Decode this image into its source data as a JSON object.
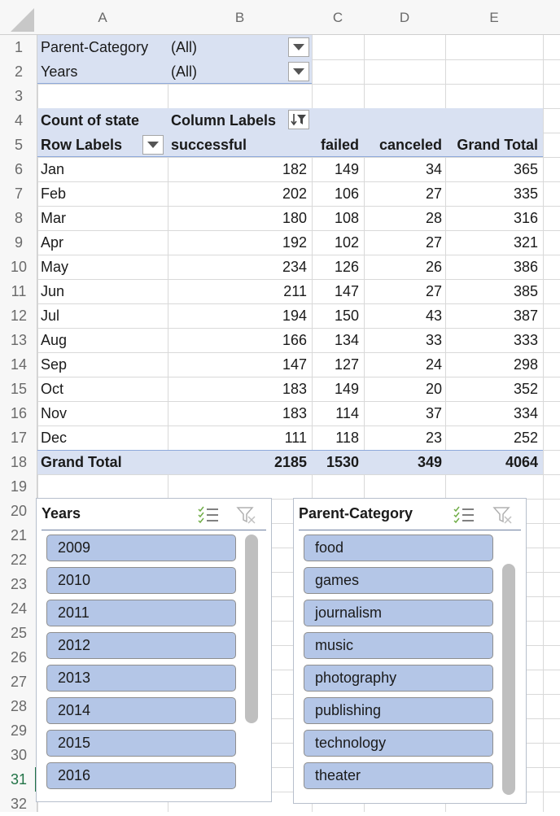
{
  "columns": [
    "A",
    "B",
    "C",
    "D",
    "E"
  ],
  "rows": [
    "1",
    "2",
    "3",
    "4",
    "5",
    "6",
    "7",
    "8",
    "9",
    "10",
    "11",
    "12",
    "13",
    "14",
    "15",
    "16",
    "17",
    "18",
    "19",
    "20",
    "21",
    "22",
    "23",
    "24",
    "25",
    "26",
    "27",
    "28",
    "29",
    "30",
    "31",
    "32"
  ],
  "active_row": "31",
  "filters": [
    {
      "label": "Parent-Category",
      "value": "(All)"
    },
    {
      "label": "Years",
      "value": "(All)"
    }
  ],
  "pivot": {
    "value_label": "Count of state",
    "column_labels": "Column Labels",
    "row_labels": "Row Labels",
    "headers": [
      "successful",
      "failed",
      "canceled",
      "Grand Total"
    ],
    "rows": [
      {
        "label": "Jan",
        "values": [
          "182",
          "149",
          "34",
          "365"
        ]
      },
      {
        "label": "Feb",
        "values": [
          "202",
          "106",
          "27",
          "335"
        ]
      },
      {
        "label": "Mar",
        "values": [
          "180",
          "108",
          "28",
          "316"
        ]
      },
      {
        "label": "Apr",
        "values": [
          "192",
          "102",
          "27",
          "321"
        ]
      },
      {
        "label": "May",
        "values": [
          "234",
          "126",
          "26",
          "386"
        ]
      },
      {
        "label": "Jun",
        "values": [
          "211",
          "147",
          "27",
          "385"
        ]
      },
      {
        "label": "Jul",
        "values": [
          "194",
          "150",
          "43",
          "387"
        ]
      },
      {
        "label": "Aug",
        "values": [
          "166",
          "134",
          "33",
          "333"
        ]
      },
      {
        "label": "Sep",
        "values": [
          "147",
          "127",
          "24",
          "298"
        ]
      },
      {
        "label": "Oct",
        "values": [
          "183",
          "149",
          "20",
          "352"
        ]
      },
      {
        "label": "Nov",
        "values": [
          "183",
          "114",
          "37",
          "334"
        ]
      },
      {
        "label": "Dec",
        "values": [
          "111",
          "118",
          "23",
          "252"
        ]
      }
    ],
    "grand_total": {
      "label": "Grand Total",
      "values": [
        "2185",
        "1530",
        "349",
        "4064"
      ]
    }
  },
  "slicers": {
    "years": {
      "title": "Years",
      "items": [
        "2009",
        "2010",
        "2011",
        "2012",
        "2013",
        "2014",
        "2015",
        "2016"
      ]
    },
    "category": {
      "title": "Parent-Category",
      "items": [
        "food",
        "games",
        "journalism",
        "music",
        "photography",
        "publishing",
        "technology",
        "theater"
      ]
    }
  },
  "colors": {
    "pivot_fill": "#d9e1f2",
    "slicer_item": "#b4c6e7",
    "active_row": "#217346",
    "gridline": "#d9d9d9"
  },
  "icons": {
    "filter_dropdown": "dropdown-arrow-icon",
    "filter_applied": "filter-applied-icon",
    "multi_select": "multi-select-icon",
    "clear_filter": "clear-filter-icon"
  }
}
